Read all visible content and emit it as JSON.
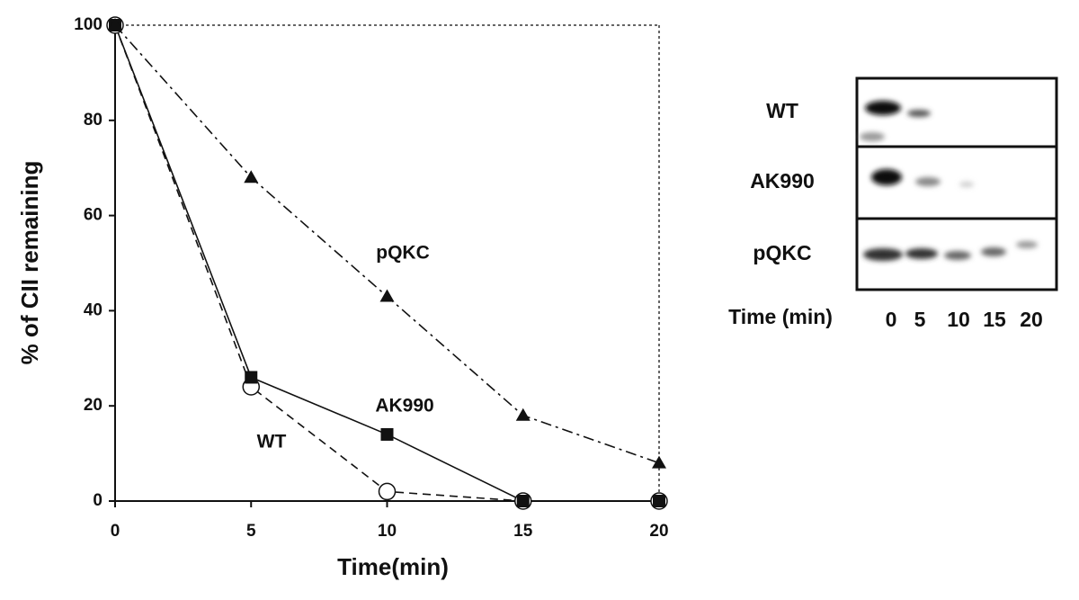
{
  "chart_data": {
    "type": "line",
    "x_label": "Time(min)",
    "y_label": "% of CII remaining",
    "x": [
      0,
      5,
      10,
      15,
      20
    ],
    "series": [
      {
        "name": "WT",
        "color": "#111111",
        "marker": "circle-open",
        "dash": "9,6",
        "values": [
          100,
          24,
          2,
          0,
          0
        ]
      },
      {
        "name": "AK990",
        "color": "#111111",
        "marker": "square",
        "dash": "none",
        "values": [
          100,
          26,
          14,
          0,
          0
        ]
      },
      {
        "name": "pQKC",
        "color": "#111111",
        "marker": "triangle",
        "dash": "12,5,3,5",
        "values": [
          100,
          68,
          43,
          18,
          8
        ]
      }
    ],
    "xlim": [
      0,
      20
    ],
    "xticks": [
      0,
      5,
      10,
      15,
      20
    ],
    "ylim": [
      0,
      100
    ],
    "yticks": [
      0,
      20,
      40,
      60,
      80,
      100
    ]
  },
  "gel": {
    "rows": [
      "WT",
      "AK990",
      "pQKC"
    ],
    "lanes_label": "Time (min)",
    "lanes": [
      "0",
      "5",
      "10",
      "15",
      "20"
    ]
  }
}
